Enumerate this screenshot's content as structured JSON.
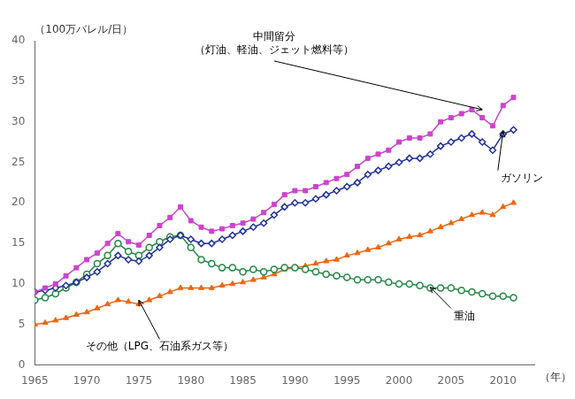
{
  "chart_data": {
    "type": "line",
    "ylabel": "（100万バレル/日）",
    "xlabel": "（年）",
    "xlim": [
      1965,
      2013
    ],
    "ylim": [
      0,
      40
    ],
    "xticks": [
      1965,
      1970,
      1975,
      1980,
      1985,
      1990,
      1995,
      2000,
      2005,
      2010
    ],
    "yticks": [
      0,
      5,
      10,
      15,
      20,
      25,
      30,
      35,
      40
    ],
    "grid": false,
    "x": [
      1965,
      1966,
      1967,
      1968,
      1969,
      1970,
      1971,
      1972,
      1973,
      1974,
      1975,
      1976,
      1977,
      1978,
      1979,
      1980,
      1981,
      1982,
      1983,
      1984,
      1985,
      1986,
      1987,
      1988,
      1989,
      1990,
      1991,
      1992,
      1993,
      1994,
      1995,
      1996,
      1997,
      1998,
      1999,
      2000,
      2001,
      2002,
      2003,
      2004,
      2005,
      2006,
      2007,
      2008,
      2009,
      2010,
      2011
    ],
    "series": [
      {
        "color": "#CC44CC",
        "marker": "square",
        "values": [
          9.0,
          9.5,
          10.0,
          11.0,
          12.0,
          13.0,
          13.8,
          15.0,
          16.2,
          15.2,
          14.8,
          16.0,
          17.2,
          18.2,
          19.5,
          17.8,
          17.0,
          16.5,
          16.8,
          17.2,
          17.5,
          18.0,
          18.8,
          19.8,
          21.0,
          21.5,
          21.5,
          22.0,
          22.5,
          23.0,
          23.5,
          24.5,
          25.5,
          26.0,
          26.5,
          27.5,
          28.0,
          28.0,
          28.5,
          30.0,
          30.5,
          31.0,
          31.5,
          30.5,
          29.5,
          32.0,
          33.0
        ]
      },
      {
        "color": "#223399",
        "marker": "diamond",
        "values": [
          9.0,
          9.2,
          9.5,
          9.8,
          10.2,
          10.8,
          11.5,
          12.5,
          13.5,
          13.0,
          12.8,
          13.5,
          14.5,
          15.5,
          16.0,
          15.5,
          15.0,
          15.0,
          15.5,
          16.0,
          16.5,
          17.0,
          17.5,
          18.5,
          19.5,
          20.0,
          20.0,
          20.5,
          21.0,
          21.5,
          22.0,
          22.5,
          23.5,
          24.0,
          24.5,
          25.0,
          25.5,
          25.5,
          26.0,
          27.0,
          27.5,
          28.0,
          28.5,
          27.5,
          26.5,
          28.5,
          29.0
        ]
      },
      {
        "color": "#228844",
        "marker": "circle",
        "values": [
          8.0,
          8.3,
          8.8,
          9.5,
          10.2,
          11.2,
          12.5,
          13.5,
          15.0,
          14.0,
          13.5,
          14.5,
          15.2,
          15.8,
          16.0,
          14.5,
          13.0,
          12.5,
          12.0,
          12.0,
          11.5,
          11.8,
          11.5,
          11.8,
          12.0,
          12.0,
          11.8,
          11.5,
          11.2,
          11.0,
          10.8,
          10.5,
          10.5,
          10.5,
          10.2,
          10.0,
          10.0,
          9.8,
          9.5,
          9.5,
          9.5,
          9.2,
          9.0,
          8.8,
          8.5,
          8.5,
          8.3
        ]
      },
      {
        "color": "#EE6611",
        "marker": "triangle",
        "values": [
          5.0,
          5.2,
          5.5,
          5.8,
          6.2,
          6.5,
          7.0,
          7.5,
          8.0,
          7.8,
          7.5,
          8.0,
          8.5,
          9.0,
          9.5,
          9.5,
          9.5,
          9.5,
          9.8,
          10.0,
          10.2,
          10.5,
          10.8,
          11.2,
          11.8,
          12.0,
          12.2,
          12.5,
          12.8,
          13.0,
          13.5,
          13.8,
          14.2,
          14.5,
          15.0,
          15.5,
          15.8,
          16.0,
          16.5,
          17.0,
          17.5,
          18.0,
          18.5,
          18.8,
          18.5,
          19.5,
          20.0
        ]
      }
    ],
    "annotations": [
      {
        "text": "中間留分\n（灯油、軽油、ジェット燃料等）",
        "xy": [
          2008,
          31.5
        ],
        "xytext": [
          1988,
          37.5
        ]
      },
      {
        "text": "ガソリン",
        "xy": [
          2010,
          28.8
        ],
        "xytext": [
          2009.5,
          24.0
        ]
      },
      {
        "text": "重油",
        "xy": [
          2003,
          9.6
        ],
        "xytext": [
          2005,
          7.0
        ]
      },
      {
        "text": "その他（LPG、石油系ガス等）",
        "xy": [
          1975,
          8.0
        ],
        "xytext": [
          1977,
          3.2
        ]
      }
    ]
  }
}
